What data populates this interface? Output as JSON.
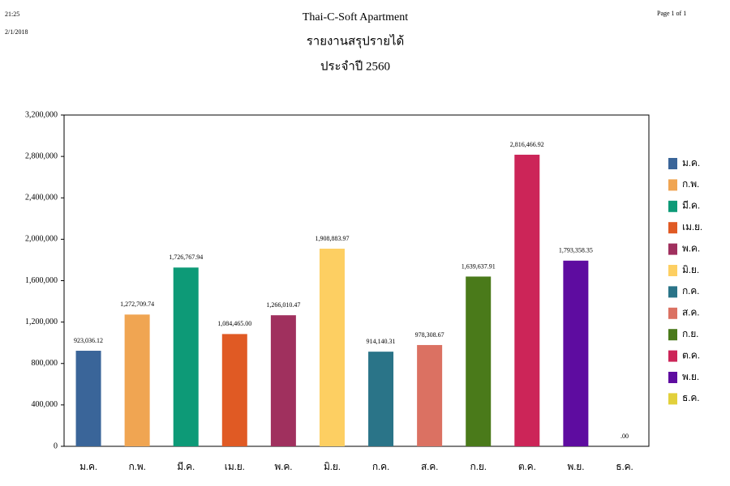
{
  "header": {
    "time": "21:25",
    "date": "2/1/2018",
    "company": "Thai-C-Soft Apartment",
    "report": "รายงานสรุปรายได้",
    "period": "ประจำปี  2560",
    "page": "Page 1 of 1"
  },
  "chart_data": {
    "type": "bar",
    "categories": [
      "ม.ค.",
      "ก.พ.",
      "มี.ค.",
      "เม.ย.",
      "พ.ค.",
      "มิ.ย.",
      "ก.ค.",
      "ส.ค.",
      "ก.ย.",
      "ต.ค.",
      "พ.ย.",
      "ธ.ค."
    ],
    "values": [
      923036.12,
      1272709.74,
      1726767.94,
      1084465.0,
      1266010.47,
      1908883.97,
      914140.31,
      978308.67,
      1639637.91,
      2816466.92,
      1793358.35,
      0
    ],
    "value_labels": [
      "923,036.12",
      "1,272,709.74",
      "1,726,767.94",
      "1,084,465.00",
      "1,266,010.47",
      "1,908,883.97",
      "914,140.31",
      "978,308.67",
      "1,639,637.91",
      "2,816,466.92",
      "1,793,358.35",
      ".00"
    ],
    "colors": [
      "#3a6599",
      "#f0a552",
      "#0d9a77",
      "#e05a24",
      "#a0305e",
      "#fdcf62",
      "#2a7488",
      "#db7162",
      "#4a7a1a",
      "#cc2558",
      "#5e0ca0",
      "#e2d03b"
    ],
    "ylim": [
      0,
      3200000
    ],
    "yticks": [
      0,
      {
        "value": 400000,
        "label": "400,000"
      },
      {
        "value": 800000,
        "label": "800,000"
      },
      {
        "value": 1200000,
        "label": "1,200,000"
      },
      {
        "value": 1600000,
        "label": "1,600,000"
      },
      {
        "value": 2000000,
        "label": "2,000,000"
      },
      {
        "value": 2400000,
        "label": "2,400,000"
      },
      {
        "value": 2800000,
        "label": "2,800,000"
      },
      {
        "value": 3200000,
        "label": "3,200,000"
      }
    ],
    "legend": "right"
  }
}
